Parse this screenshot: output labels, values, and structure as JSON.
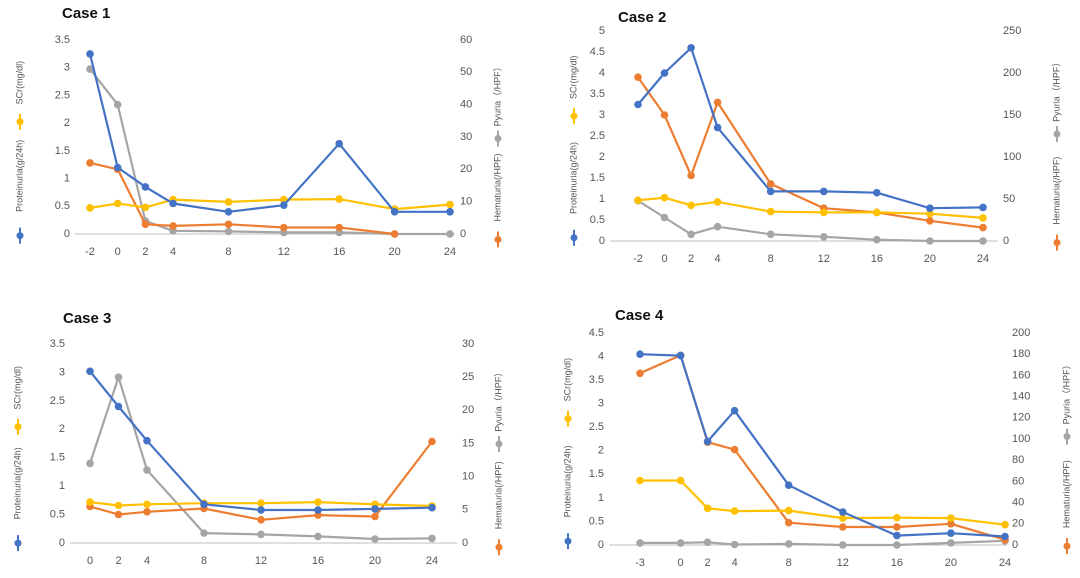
{
  "chart_data": [
    {
      "type": "line",
      "title": "Case 1",
      "x": [
        "-2",
        "0",
        "2",
        "4",
        "8",
        "12",
        "16",
        "20",
        "24"
      ],
      "x_positions": [
        -2,
        0,
        2,
        4,
        8,
        12,
        16,
        20,
        24
      ],
      "left_axis": {
        "ylim": [
          0,
          3.5
        ],
        "ticks": [
          "0",
          "0.5",
          "1",
          "1.5",
          "2",
          "2.5",
          "3",
          "3.5"
        ],
        "labels": [
          "SCr(mg/dl)",
          "Proteinuria(g/24h)"
        ]
      },
      "right_axis": {
        "ylim": [
          0,
          60
        ],
        "ticks": [
          "0",
          "10",
          "20",
          "30",
          "40",
          "50",
          "60"
        ],
        "labels": [
          "Pyuria（/HPF）",
          "Hematuria(/HPF)"
        ]
      },
      "series": [
        {
          "axis": "left",
          "color": "#4472C4",
          "values": [
            3.25,
            1.2,
            0.85,
            0.55,
            0.4,
            0.52,
            1.63,
            0.4,
            0.4
          ]
        },
        {
          "axis": "left",
          "color": "#FFC000",
          "values": [
            0.47,
            0.55,
            0.48,
            0.62,
            0.58,
            0.62,
            0.63,
            0.45,
            0.53
          ]
        },
        {
          "axis": "right",
          "color": "#A5A5A5",
          "values": [
            51,
            40,
            4,
            1,
            0.8,
            0.5,
            0.5,
            0,
            0
          ]
        },
        {
          "axis": "right",
          "color": "#ED7D31",
          "values": [
            22,
            20,
            3,
            2.5,
            3,
            2,
            2,
            0,
            null
          ]
        }
      ]
    },
    {
      "type": "line",
      "title": "Case 2",
      "x": [
        "-2",
        "0",
        "2",
        "4",
        "8",
        "12",
        "16",
        "20",
        "24"
      ],
      "x_positions": [
        -2,
        0,
        2,
        4,
        8,
        12,
        16,
        20,
        24
      ],
      "left_axis": {
        "ylim": [
          0,
          5
        ],
        "ticks": [
          "0",
          "0.5",
          "1",
          "1.5",
          "2",
          "2.5",
          "3",
          "3.5",
          "4",
          "4.5",
          "5"
        ],
        "labels": [
          "SCr(mg/dl)",
          "Proteinuria(g/24h)"
        ]
      },
      "right_axis": {
        "ylim": [
          0,
          250
        ],
        "ticks": [
          "0",
          "50",
          "100",
          "150",
          "200",
          "250"
        ],
        "labels": [
          "Pyuria（/HPF）",
          "Hematuria(/HPF)"
        ]
      },
      "series": [
        {
          "axis": "left",
          "color": "#4472C4",
          "values": [
            3.25,
            4.0,
            4.6,
            2.7,
            1.18,
            1.18,
            1.15,
            0.78,
            0.8
          ]
        },
        {
          "axis": "left",
          "color": "#FFC000",
          "values": [
            0.97,
            1.03,
            0.85,
            0.93,
            0.7,
            0.68,
            0.68,
            0.65,
            0.55
          ]
        },
        {
          "axis": "right",
          "color": "#A5A5A5",
          "values": [
            48,
            28,
            8,
            17,
            8,
            5,
            1.5,
            0,
            0
          ]
        },
        {
          "axis": "right",
          "color": "#ED7D31",
          "values": [
            195,
            150,
            78,
            165,
            68,
            39,
            34,
            24,
            16
          ]
        }
      ]
    },
    {
      "type": "line",
      "title": "Case 3",
      "x": [
        "0",
        "2",
        "4",
        "8",
        "12",
        "16",
        "20",
        "24"
      ],
      "x_positions": [
        0,
        2,
        4,
        8,
        12,
        16,
        20,
        24
      ],
      "left_axis": {
        "ylim": [
          0,
          3.5
        ],
        "ticks": [
          "0",
          "0.5",
          "1",
          "1.5",
          "2",
          "2.5",
          "3",
          "3.5"
        ],
        "labels": [
          "SCr(mg/dl)",
          "Proteinuria(g/24h)"
        ]
      },
      "right_axis": {
        "ylim": [
          0,
          30
        ],
        "ticks": [
          "0",
          "5",
          "10",
          "15",
          "20",
          "25",
          "30"
        ],
        "labels": [
          "Pyuria（/HPF）",
          "Hematuria(/HPF)"
        ]
      },
      "series": [
        {
          "axis": "left",
          "color": "#4472C4",
          "values": [
            3.02,
            2.4,
            1.8,
            0.68,
            0.58,
            0.58,
            0.6,
            0.62
          ]
        },
        {
          "axis": "left",
          "color": "#FFC000",
          "values": [
            0.72,
            0.66,
            0.68,
            0.7,
            0.7,
            0.72,
            0.68,
            0.65
          ]
        },
        {
          "axis": "right",
          "color": "#A5A5A5",
          "values": [
            12,
            25,
            11,
            1.5,
            1.3,
            1,
            0.6,
            0.7
          ]
        },
        {
          "axis": "right",
          "color": "#ED7D31",
          "values": [
            5.5,
            4.3,
            4.7,
            5.2,
            3.5,
            4.2,
            4.0,
            15.3
          ]
        }
      ]
    },
    {
      "type": "line",
      "title": "Case 4",
      "x": [
        "-3",
        "0",
        "2",
        "4",
        "8",
        "12",
        "16",
        "20",
        "24"
      ],
      "x_positions": [
        -3,
        0,
        2,
        4,
        8,
        12,
        16,
        20,
        24
      ],
      "left_axis": {
        "ylim": [
          0,
          4.5
        ],
        "ticks": [
          "0",
          "0.5",
          "1",
          "1.5",
          "2",
          "2.5",
          "3",
          "3.5",
          "4",
          "4.5"
        ],
        "labels": [
          "SCr(mg/dl)",
          "Proteinuria(g/24h)"
        ]
      },
      "right_axis": {
        "ylim": [
          0,
          200
        ],
        "ticks": [
          "0",
          "20",
          "40",
          "60",
          "80",
          "100",
          "120",
          "140",
          "160",
          "180",
          "200"
        ],
        "labels": [
          "Pyuria（/HPF）",
          "Hematuria(/HPF)"
        ]
      },
      "series": [
        {
          "axis": "left",
          "color": "#4472C4",
          "values": [
            4.05,
            4.02,
            2.2,
            2.85,
            1.27,
            0.7,
            0.2,
            0.25,
            0.18
          ]
        },
        {
          "axis": "left",
          "color": "#FFC000",
          "values": [
            1.37,
            1.37,
            0.78,
            0.72,
            0.73,
            0.57,
            0.58,
            0.57,
            0.43
          ]
        },
        {
          "axis": "right",
          "color": "#A5A5A5",
          "values": [
            2,
            2,
            2.5,
            0.5,
            1,
            0,
            0,
            2,
            4
          ]
        },
        {
          "axis": "right",
          "color": "#ED7D31",
          "values": [
            162,
            179,
            97,
            90,
            21,
            17,
            17,
            20,
            5
          ]
        }
      ]
    }
  ]
}
